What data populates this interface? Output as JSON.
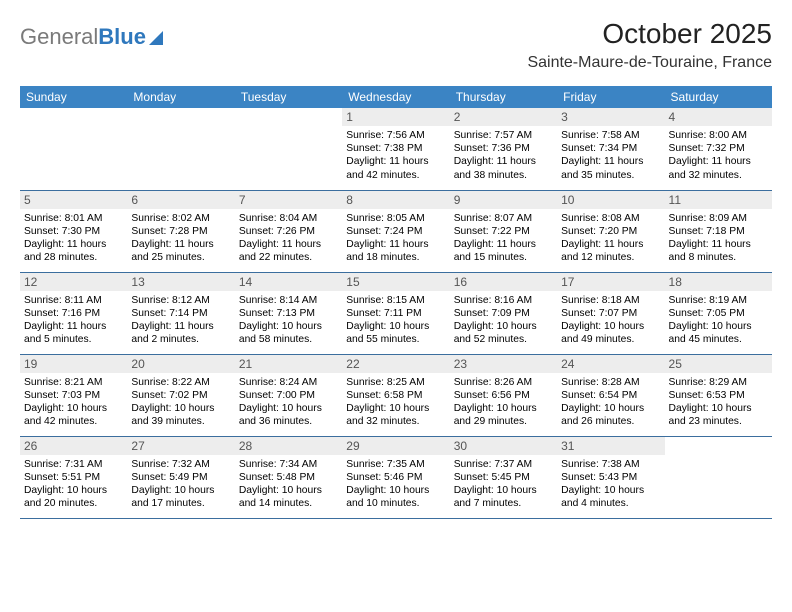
{
  "brand": {
    "part1": "General",
    "part2": "Blue"
  },
  "header": {
    "title": "October 2025",
    "location": "Sainte-Maure-de-Touraine, France"
  },
  "dayHeaders": [
    "Sunday",
    "Monday",
    "Tuesday",
    "Wednesday",
    "Thursday",
    "Friday",
    "Saturday"
  ],
  "colors": {
    "header_bg": "#3b84c4",
    "row_border": "#3b6e9e",
    "daynum_bg": "#ededed",
    "brand_gray": "#7a7a7a",
    "brand_blue": "#2f78bd"
  },
  "weeks": [
    [
      null,
      null,
      null,
      {
        "day": "1",
        "sunrise": "7:56 AM",
        "sunset": "7:38 PM",
        "daylight": "11 hours and 42 minutes."
      },
      {
        "day": "2",
        "sunrise": "7:57 AM",
        "sunset": "7:36 PM",
        "daylight": "11 hours and 38 minutes."
      },
      {
        "day": "3",
        "sunrise": "7:58 AM",
        "sunset": "7:34 PM",
        "daylight": "11 hours and 35 minutes."
      },
      {
        "day": "4",
        "sunrise": "8:00 AM",
        "sunset": "7:32 PM",
        "daylight": "11 hours and 32 minutes."
      }
    ],
    [
      {
        "day": "5",
        "sunrise": "8:01 AM",
        "sunset": "7:30 PM",
        "daylight": "11 hours and 28 minutes."
      },
      {
        "day": "6",
        "sunrise": "8:02 AM",
        "sunset": "7:28 PM",
        "daylight": "11 hours and 25 minutes."
      },
      {
        "day": "7",
        "sunrise": "8:04 AM",
        "sunset": "7:26 PM",
        "daylight": "11 hours and 22 minutes."
      },
      {
        "day": "8",
        "sunrise": "8:05 AM",
        "sunset": "7:24 PM",
        "daylight": "11 hours and 18 minutes."
      },
      {
        "day": "9",
        "sunrise": "8:07 AM",
        "sunset": "7:22 PM",
        "daylight": "11 hours and 15 minutes."
      },
      {
        "day": "10",
        "sunrise": "8:08 AM",
        "sunset": "7:20 PM",
        "daylight": "11 hours and 12 minutes."
      },
      {
        "day": "11",
        "sunrise": "8:09 AM",
        "sunset": "7:18 PM",
        "daylight": "11 hours and 8 minutes."
      }
    ],
    [
      {
        "day": "12",
        "sunrise": "8:11 AM",
        "sunset": "7:16 PM",
        "daylight": "11 hours and 5 minutes."
      },
      {
        "day": "13",
        "sunrise": "8:12 AM",
        "sunset": "7:14 PM",
        "daylight": "11 hours and 2 minutes."
      },
      {
        "day": "14",
        "sunrise": "8:14 AM",
        "sunset": "7:13 PM",
        "daylight": "10 hours and 58 minutes."
      },
      {
        "day": "15",
        "sunrise": "8:15 AM",
        "sunset": "7:11 PM",
        "daylight": "10 hours and 55 minutes."
      },
      {
        "day": "16",
        "sunrise": "8:16 AM",
        "sunset": "7:09 PM",
        "daylight": "10 hours and 52 minutes."
      },
      {
        "day": "17",
        "sunrise": "8:18 AM",
        "sunset": "7:07 PM",
        "daylight": "10 hours and 49 minutes."
      },
      {
        "day": "18",
        "sunrise": "8:19 AM",
        "sunset": "7:05 PM",
        "daylight": "10 hours and 45 minutes."
      }
    ],
    [
      {
        "day": "19",
        "sunrise": "8:21 AM",
        "sunset": "7:03 PM",
        "daylight": "10 hours and 42 minutes."
      },
      {
        "day": "20",
        "sunrise": "8:22 AM",
        "sunset": "7:02 PM",
        "daylight": "10 hours and 39 minutes."
      },
      {
        "day": "21",
        "sunrise": "8:24 AM",
        "sunset": "7:00 PM",
        "daylight": "10 hours and 36 minutes."
      },
      {
        "day": "22",
        "sunrise": "8:25 AM",
        "sunset": "6:58 PM",
        "daylight": "10 hours and 32 minutes."
      },
      {
        "day": "23",
        "sunrise": "8:26 AM",
        "sunset": "6:56 PM",
        "daylight": "10 hours and 29 minutes."
      },
      {
        "day": "24",
        "sunrise": "8:28 AM",
        "sunset": "6:54 PM",
        "daylight": "10 hours and 26 minutes."
      },
      {
        "day": "25",
        "sunrise": "8:29 AM",
        "sunset": "6:53 PM",
        "daylight": "10 hours and 23 minutes."
      }
    ],
    [
      {
        "day": "26",
        "sunrise": "7:31 AM",
        "sunset": "5:51 PM",
        "daylight": "10 hours and 20 minutes."
      },
      {
        "day": "27",
        "sunrise": "7:32 AM",
        "sunset": "5:49 PM",
        "daylight": "10 hours and 17 minutes."
      },
      {
        "day": "28",
        "sunrise": "7:34 AM",
        "sunset": "5:48 PM",
        "daylight": "10 hours and 14 minutes."
      },
      {
        "day": "29",
        "sunrise": "7:35 AM",
        "sunset": "5:46 PM",
        "daylight": "10 hours and 10 minutes."
      },
      {
        "day": "30",
        "sunrise": "7:37 AM",
        "sunset": "5:45 PM",
        "daylight": "10 hours and 7 minutes."
      },
      {
        "day": "31",
        "sunrise": "7:38 AM",
        "sunset": "5:43 PM",
        "daylight": "10 hours and 4 minutes."
      },
      null
    ]
  ],
  "labels": {
    "sunrise": "Sunrise: ",
    "sunset": "Sunset: ",
    "daylight": "Daylight: "
  }
}
